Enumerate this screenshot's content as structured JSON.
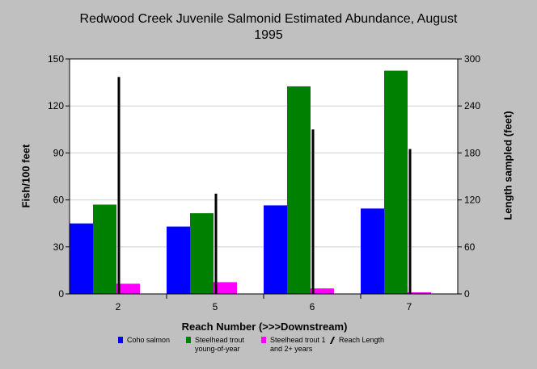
{
  "title_line1": "Redwood Creek Juvenile Salmonid Estimated Abundance, August",
  "title_line2": "1995",
  "chart_data": {
    "type": "bar",
    "title": "Redwood Creek Juvenile Salmonid Estimated Abundance, August 1995",
    "xlabel": "Reach Number (>>>Downstream)",
    "ylabel": "Fish/100 feet",
    "y2label": "Length sampled (feet)",
    "categories": [
      "2",
      "5",
      "6",
      "7"
    ],
    "ylim": [
      0,
      150
    ],
    "y2lim": [
      0,
      300
    ],
    "yticks": [
      "0",
      "30",
      "60",
      "90",
      "120",
      "150"
    ],
    "y2ticks": [
      "0",
      "60",
      "120",
      "180",
      "240",
      "300"
    ],
    "series": [
      {
        "name": "Coho salmon",
        "axis": "left",
        "color": "#0000ff",
        "values": [
          45,
          43,
          56.5,
          54.5
        ]
      },
      {
        "name": "Steelhead trout young-of-year",
        "axis": "left",
        "color": "#008000",
        "values": [
          57,
          51.5,
          132.5,
          142.5
        ]
      },
      {
        "name": "Steelhead trout 1 and 2+ years",
        "axis": "left",
        "color": "#ff00ff",
        "values": [
          6.5,
          7.5,
          3.5,
          1
        ]
      },
      {
        "name": "Reach Length",
        "axis": "right",
        "color": "#000000",
        "values": [
          277,
          128,
          210,
          185
        ]
      }
    ]
  },
  "legend": [
    {
      "line1": "Coho salmon",
      "line2": "",
      "color": "#0000ff"
    },
    {
      "line1": "Steelhead trout",
      "line2": "young-of-year",
      "color": "#008000"
    },
    {
      "line1": "Steelhead trout 1",
      "line2": "and 2+ years",
      "color": "#ff00ff"
    },
    {
      "line1": "Reach Length",
      "line2": "",
      "color": "#000000"
    }
  ]
}
